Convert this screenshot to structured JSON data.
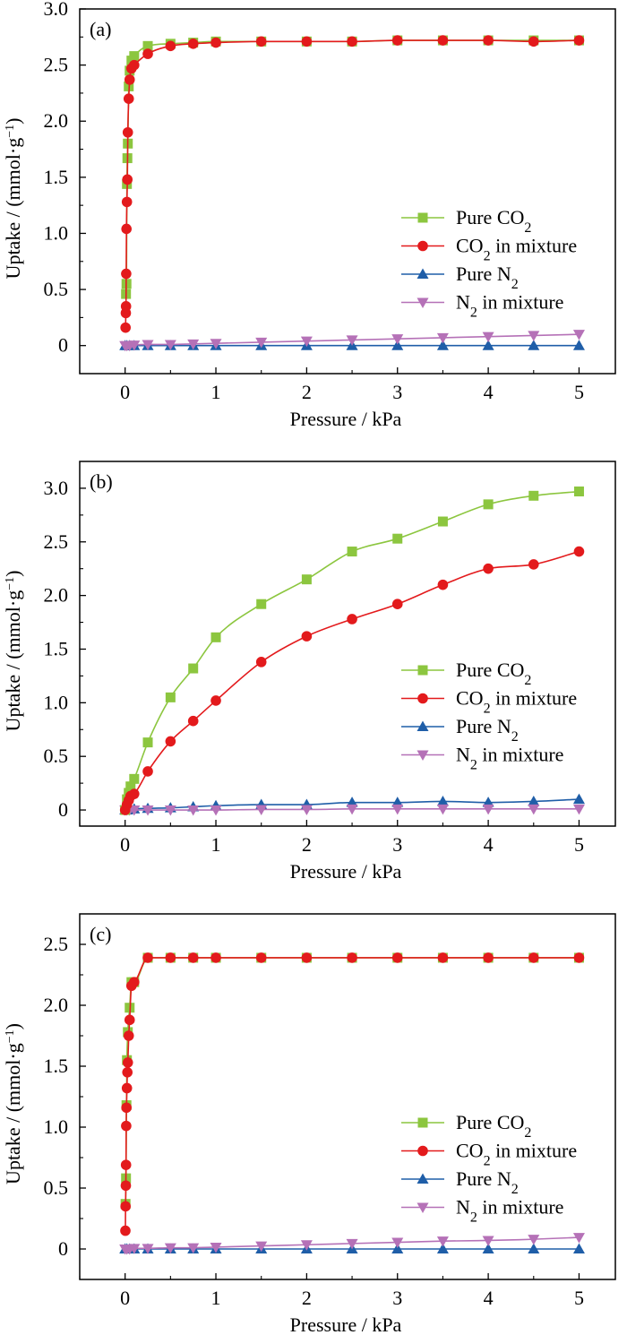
{
  "colors": {
    "pure_co2": "#8cc63f",
    "co2_mix": "#e31a1c",
    "pure_n2": "#1f5ea8",
    "n2_mix": "#b571b7",
    "axis": "#000000"
  },
  "chart_data": [
    {
      "type": "line",
      "panel_label": "(a)",
      "xlabel": "Pressure / kPa",
      "ylabel": "Uptake / (mmol·g⁻¹)",
      "xlim": [
        -0.5,
        5.4
      ],
      "ylim": [
        -0.25,
        3.0
      ],
      "xticks": [
        0,
        1,
        2,
        3,
        4,
        5
      ],
      "xtick_labels": [
        "0",
        "1",
        "2",
        "3",
        "4",
        "5"
      ],
      "yticks": [
        0,
        0.5,
        1.0,
        1.5,
        2.0,
        2.5,
        3.0
      ],
      "ytick_labels": [
        "0",
        "0.5",
        "1.0",
        "1.5",
        "2.0",
        "2.5",
        "3.0"
      ],
      "legend_position": "center-right",
      "series": [
        {
          "name": "Pure CO₂",
          "marker": "square",
          "x": [
            0.01,
            0.015,
            0.02,
            0.025,
            0.03,
            0.04,
            0.05,
            0.07,
            0.1,
            0.25,
            0.5,
            0.75,
            1.0,
            1.5,
            2.0,
            2.5,
            3.0,
            3.5,
            4.0,
            4.5,
            5.0
          ],
          "y": [
            0.46,
            0.55,
            1.44,
            1.67,
            1.8,
            2.31,
            2.45,
            2.54,
            2.58,
            2.67,
            2.69,
            2.7,
            2.71,
            2.71,
            2.71,
            2.71,
            2.72,
            2.72,
            2.72,
            2.72,
            2.72
          ]
        },
        {
          "name": "CO₂ in mixture",
          "marker": "circle",
          "x": [
            0.005,
            0.008,
            0.01,
            0.012,
            0.015,
            0.02,
            0.025,
            0.03,
            0.04,
            0.05,
            0.07,
            0.1,
            0.25,
            0.5,
            0.75,
            1.0,
            1.5,
            2.0,
            2.5,
            3.0,
            3.5,
            4.0,
            4.5,
            5.0
          ],
          "y": [
            0.16,
            0.29,
            0.35,
            0.64,
            1.04,
            1.28,
            1.48,
            1.9,
            2.2,
            2.37,
            2.47,
            2.5,
            2.6,
            2.67,
            2.69,
            2.7,
            2.71,
            2.71,
            2.71,
            2.72,
            2.72,
            2.72,
            2.71,
            2.72
          ]
        },
        {
          "name": "Pure N₂",
          "marker": "triangle-up",
          "x": [
            0.0,
            0.02,
            0.05,
            0.1,
            0.25,
            0.5,
            0.75,
            1.0,
            1.5,
            2.0,
            2.5,
            3.0,
            3.5,
            4.0,
            4.5,
            5.0
          ],
          "y": [
            0,
            0,
            0,
            0,
            0,
            0,
            0,
            0,
            0,
            0,
            0,
            0,
            0,
            0,
            0,
            0
          ]
        },
        {
          "name": "N₂ in mixture",
          "marker": "triangle-down",
          "x": [
            0.0,
            0.02,
            0.05,
            0.1,
            0.25,
            0.5,
            0.75,
            1.0,
            1.5,
            2.0,
            2.5,
            3.0,
            3.5,
            4.0,
            4.5,
            5.0
          ],
          "y": [
            0.0,
            0.0,
            0.0,
            0.005,
            0.01,
            0.01,
            0.015,
            0.02,
            0.03,
            0.04,
            0.05,
            0.06,
            0.07,
            0.08,
            0.09,
            0.1
          ]
        }
      ]
    },
    {
      "type": "line",
      "panel_label": "(b)",
      "xlabel": "Pressure / kPa",
      "ylabel": "Uptake / (mmol·g⁻¹)",
      "xlim": [
        -0.5,
        5.4
      ],
      "ylim": [
        -0.15,
        3.25
      ],
      "xticks": [
        0,
        1,
        2,
        3,
        4,
        5
      ],
      "xtick_labels": [
        "0",
        "1",
        "2",
        "3",
        "4",
        "5"
      ],
      "yticks": [
        0,
        0.5,
        1.0,
        1.5,
        2.0,
        2.5,
        3.0
      ],
      "ytick_labels": [
        "0",
        "0.5",
        "1.0",
        "1.5",
        "2.0",
        "2.5",
        "3.0"
      ],
      "legend_position": "center-right",
      "series": [
        {
          "name": "Pure CO₂",
          "marker": "square",
          "x": [
            0.0,
            0.02,
            0.04,
            0.06,
            0.1,
            0.25,
            0.5,
            0.75,
            1.0,
            1.5,
            2.0,
            2.5,
            3.0,
            3.5,
            4.0,
            4.5,
            5.0
          ],
          "y": [
            0.0,
            0.1,
            0.16,
            0.22,
            0.29,
            0.63,
            1.05,
            1.32,
            1.61,
            1.92,
            2.15,
            2.41,
            2.53,
            2.69,
            2.85,
            2.93,
            2.97
          ]
        },
        {
          "name": "CO₂ in mixture",
          "marker": "circle",
          "x": [
            0.0,
            0.02,
            0.04,
            0.06,
            0.1,
            0.25,
            0.5,
            0.75,
            1.0,
            1.5,
            2.0,
            2.5,
            3.0,
            3.5,
            4.0,
            4.5,
            5.0
          ],
          "y": [
            0.0,
            0.05,
            0.09,
            0.13,
            0.15,
            0.36,
            0.64,
            0.83,
            1.02,
            1.38,
            1.62,
            1.78,
            1.92,
            2.1,
            2.25,
            2.29,
            2.41
          ]
        },
        {
          "name": "Pure N₂",
          "marker": "triangle-up",
          "x": [
            0.0,
            0.02,
            0.05,
            0.1,
            0.25,
            0.5,
            0.75,
            1.0,
            1.5,
            2.0,
            2.5,
            3.0,
            3.5,
            4.0,
            4.5,
            5.0
          ],
          "y": [
            0.0,
            0.0,
            0.005,
            0.01,
            0.015,
            0.02,
            0.03,
            0.04,
            0.05,
            0.05,
            0.07,
            0.07,
            0.08,
            0.07,
            0.08,
            0.1
          ]
        },
        {
          "name": "N₂ in mixture",
          "marker": "triangle-down",
          "x": [
            0.0,
            0.02,
            0.05,
            0.1,
            0.25,
            0.5,
            0.75,
            1.0,
            1.5,
            2.0,
            2.5,
            3.0,
            3.5,
            4.0,
            4.5,
            5.0
          ],
          "y": [
            0.0,
            0.0,
            0.0,
            0.0,
            0.0,
            0.0,
            0.0,
            0.0,
            0.005,
            0.005,
            0.01,
            0.01,
            0.01,
            0.01,
            0.01,
            0.01
          ]
        }
      ]
    },
    {
      "type": "line",
      "panel_label": "(c)",
      "xlabel": "Pressure / kPa",
      "ylabel": "Uptake / (mmol·g⁻¹)",
      "xlim": [
        -0.5,
        5.4
      ],
      "ylim": [
        -0.25,
        2.75
      ],
      "xticks": [
        0,
        1,
        2,
        3,
        4,
        5
      ],
      "xtick_labels": [
        "0",
        "1",
        "2",
        "3",
        "4",
        "5"
      ],
      "yticks": [
        0,
        0.5,
        1.0,
        1.5,
        2.0,
        2.5
      ],
      "ytick_labels": [
        "0",
        "0.5",
        "1.0",
        "1.5",
        "2.0",
        "2.5"
      ],
      "legend_position": "center-right",
      "series": [
        {
          "name": "Pure CO₂",
          "marker": "square",
          "x": [
            0.005,
            0.01,
            0.015,
            0.02,
            0.03,
            0.05,
            0.07,
            0.1,
            0.25,
            0.5,
            0.75,
            1.0,
            1.5,
            2.0,
            2.5,
            3.0,
            3.5,
            4.0,
            4.5,
            5.0
          ],
          "y": [
            0.37,
            0.58,
            1.18,
            1.55,
            1.78,
            1.98,
            2.19,
            2.19,
            2.39,
            2.39,
            2.39,
            2.39,
            2.39,
            2.39,
            2.39,
            2.39,
            2.39,
            2.39,
            2.39,
            2.39
          ]
        },
        {
          "name": "CO₂ in mixture",
          "marker": "circle",
          "x": [
            0.003,
            0.005,
            0.008,
            0.01,
            0.012,
            0.015,
            0.02,
            0.025,
            0.03,
            0.04,
            0.05,
            0.07,
            0.1,
            0.25,
            0.5,
            0.75,
            1.0,
            1.5,
            2.0,
            2.5,
            3.0,
            3.5,
            4.0,
            4.5,
            5.0
          ],
          "y": [
            0.15,
            0.35,
            0.52,
            0.69,
            1.01,
            1.16,
            1.32,
            1.45,
            1.53,
            1.75,
            1.88,
            2.16,
            2.19,
            2.39,
            2.39,
            2.39,
            2.39,
            2.39,
            2.39,
            2.39,
            2.39,
            2.39,
            2.39,
            2.39,
            2.39
          ]
        },
        {
          "name": "Pure N₂",
          "marker": "triangle-up",
          "x": [
            0.0,
            0.02,
            0.05,
            0.1,
            0.25,
            0.5,
            0.75,
            1.0,
            1.5,
            2.0,
            2.5,
            3.0,
            3.5,
            4.0,
            4.5,
            5.0
          ],
          "y": [
            0,
            0,
            0,
            0,
            0,
            0,
            0,
            0,
            0,
            0,
            0,
            0,
            0,
            0,
            0,
            0
          ]
        },
        {
          "name": "N₂ in mixture",
          "marker": "triangle-down",
          "x": [
            0.0,
            0.02,
            0.05,
            0.1,
            0.25,
            0.5,
            0.75,
            1.0,
            1.5,
            2.0,
            2.5,
            3.0,
            3.5,
            4.0,
            4.5,
            5.0
          ],
          "y": [
            0.0,
            0.0,
            0.0,
            0.005,
            0.005,
            0.01,
            0.01,
            0.015,
            0.025,
            0.035,
            0.045,
            0.055,
            0.065,
            0.07,
            0.08,
            0.095
          ]
        }
      ]
    }
  ]
}
